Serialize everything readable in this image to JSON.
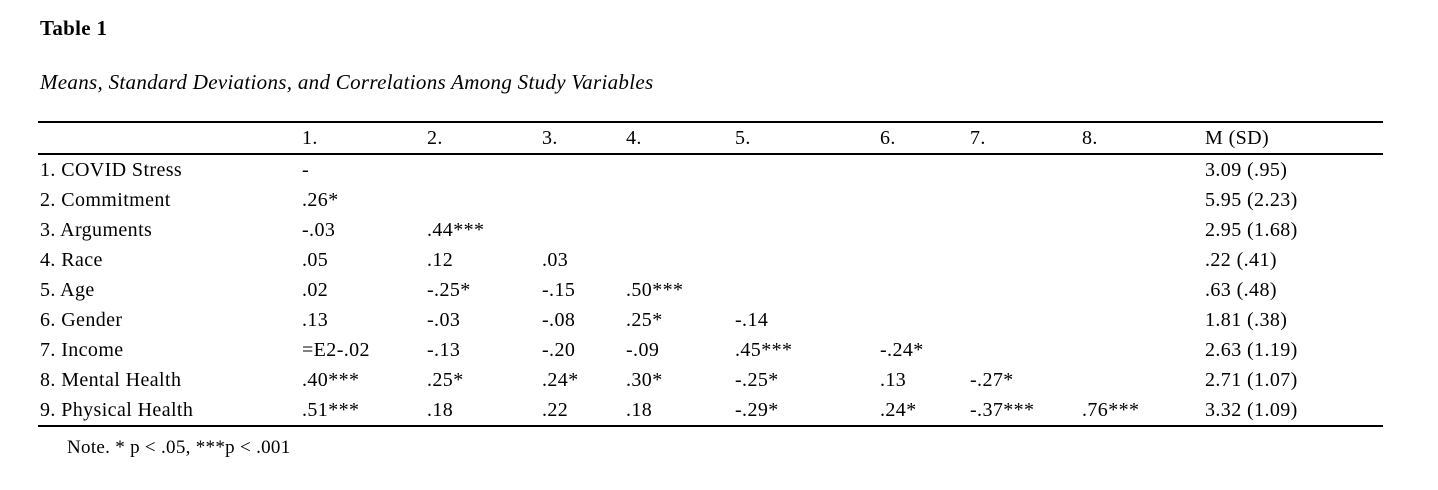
{
  "page": {
    "table_label": "Table 1",
    "table_title": "Means, Standard Deviations, and Correlations Among Study Variables",
    "note": "Note. * p < .05, ***p < .001"
  },
  "table": {
    "columns": [
      "",
      "1.",
      "2.",
      "3.",
      "4.",
      "5.",
      "6.",
      "7.",
      "8.",
      "M (SD)"
    ],
    "rows": [
      {
        "label": "1. COVID Stress",
        "values": [
          "-",
          "",
          "",
          "",
          "",
          "",
          "",
          ""
        ],
        "m_sd": "3.09 (.95)"
      },
      {
        "label": "2. Commitment",
        "values": [
          ".26*",
          "",
          "",
          "",
          "",
          "",
          "",
          ""
        ],
        "m_sd": "5.95 (2.23)"
      },
      {
        "label": "3. Arguments",
        "values": [
          "-.03",
          ".44***",
          "",
          "",
          "",
          "",
          "",
          ""
        ],
        "m_sd": "2.95 (1.68)"
      },
      {
        "label": "4. Race",
        "values": [
          ".05",
          ".12",
          ".03",
          "",
          "",
          "",
          "",
          ""
        ],
        "m_sd": ".22 (.41)"
      },
      {
        "label": "5. Age",
        "values": [
          ".02",
          "-.25*",
          "-.15",
          ".50***",
          "",
          "",
          "",
          ""
        ],
        "m_sd": ".63 (.48)"
      },
      {
        "label": "6. Gender",
        "values": [
          ".13",
          "-.03",
          "-.08",
          ".25*",
          "-.14",
          "",
          "",
          ""
        ],
        "m_sd": "1.81 (.38)"
      },
      {
        "label": "7. Income",
        "values": [
          "=E2-.02",
          "-.13",
          "-.20",
          "-.09",
          ".45***",
          "-.24*",
          "",
          ""
        ],
        "m_sd": "2.63 (1.19)"
      },
      {
        "label": "8. Mental Health",
        "values": [
          ".40***",
          ".25*",
          ".24*",
          ".30*",
          "-.25*",
          ".13",
          "-.27*",
          ""
        ],
        "m_sd": "2.71 (1.07)"
      },
      {
        "label": "9. Physical Health",
        "values": [
          ".51***",
          ".18",
          ".22",
          ".18",
          "-.29*",
          ".24*",
          "-.37***",
          ".76***"
        ],
        "m_sd": "3.32 (1.09)"
      }
    ]
  }
}
